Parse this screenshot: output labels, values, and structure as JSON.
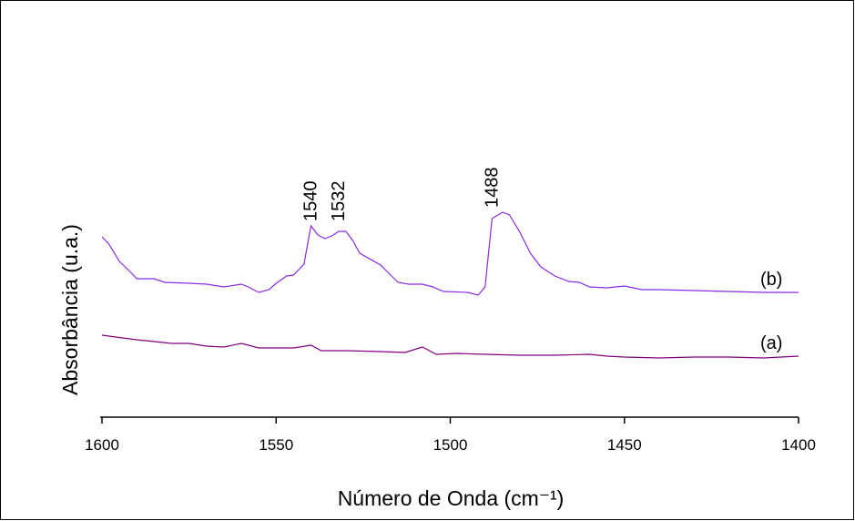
{
  "chart_data": {
    "type": "line",
    "xlabel": "Número de Onda (cm⁻¹)",
    "ylabel": "Absorbância (u.a.)",
    "xlim": [
      1600,
      1400
    ],
    "xticks": [
      1600,
      1550,
      1500,
      1450,
      1400
    ],
    "ylim": [
      0,
      10
    ],
    "annotations": [
      "1540",
      "1532",
      "1488"
    ],
    "series": [
      {
        "name": "(b)",
        "color": "#8a2be2",
        "x": [
          1600,
          1598,
          1595,
          1592,
          1590,
          1585,
          1582,
          1575,
          1570,
          1565,
          1560,
          1558,
          1555,
          1552,
          1550,
          1547,
          1545,
          1542,
          1540,
          1538,
          1536,
          1534,
          1532,
          1530,
          1528,
          1526,
          1520,
          1515,
          1512,
          1508,
          1505,
          1502,
          1495,
          1492,
          1490,
          1488,
          1485,
          1483,
          1480,
          1477,
          1474,
          1470,
          1466,
          1463,
          1460,
          1455,
          1450,
          1445,
          1440,
          1430,
          1420,
          1410,
          1400
        ],
        "values": [
          4.95,
          4.75,
          4.275,
          4.0,
          3.8,
          3.8,
          3.7,
          3.675,
          3.65,
          3.575,
          3.65,
          3.575,
          3.425,
          3.5,
          3.675,
          3.875,
          3.9,
          4.2,
          5.25,
          5.0,
          4.9,
          4.975,
          5.1,
          5.1,
          4.85,
          4.5,
          4.175,
          3.7,
          3.65,
          3.65,
          3.575,
          3.45,
          3.425,
          3.35,
          3.575,
          5.45,
          5.625,
          5.55,
          5.075,
          4.5,
          4.125,
          3.875,
          3.725,
          3.7,
          3.575,
          3.55,
          3.6,
          3.5,
          3.5,
          3.475,
          3.45,
          3.425,
          3.425
        ]
      },
      {
        "name": "(a)",
        "color": "#800080",
        "x": [
          1600,
          1590,
          1580,
          1575,
          1570,
          1565,
          1560,
          1555,
          1545,
          1540,
          1537,
          1530,
          1520,
          1513,
          1508,
          1504,
          1498,
          1490,
          1480,
          1470,
          1460,
          1455,
          1450,
          1440,
          1430,
          1420,
          1410,
          1400
        ],
        "values": [
          2.25,
          2.125,
          2.025,
          2.025,
          1.95,
          1.925,
          2.025,
          1.9,
          1.9,
          1.975,
          1.825,
          1.825,
          1.8,
          1.775,
          1.925,
          1.725,
          1.75,
          1.725,
          1.7,
          1.7,
          1.725,
          1.675,
          1.65,
          1.625,
          1.65,
          1.65,
          1.625,
          1.675
        ]
      }
    ]
  }
}
